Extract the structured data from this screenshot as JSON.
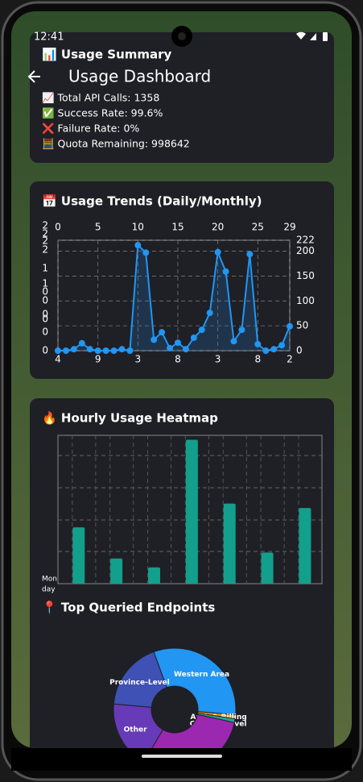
{
  "status_bar": {
    "time": "12:41"
  },
  "app_bar": {
    "title": "Usage Dashboard"
  },
  "summary": {
    "title": "📊 Usage Summary",
    "lines": [
      "📈 Total API Calls: 1358",
      "✅ Success Rate: 99.6%",
      "❌ Failure Rate: 0%",
      "🧮 Quota Remaining: 998642"
    ]
  },
  "trends": {
    "type": "line",
    "title": "📅 Usage Trends (Daily/Monthly)",
    "x": [
      0,
      1,
      2,
      3,
      4,
      5,
      6,
      7,
      8,
      9,
      10,
      11,
      12,
      13,
      14,
      15,
      16,
      17,
      18,
      19,
      20,
      21,
      22,
      23,
      24,
      25,
      26,
      27,
      28,
      29
    ],
    "values": [
      0,
      0,
      3,
      15,
      3,
      0,
      0,
      0,
      3,
      0,
      212,
      197,
      22,
      37,
      5,
      16,
      3,
      26,
      42,
      76,
      198,
      159,
      19,
      42,
      194,
      13,
      0,
      3,
      11,
      49
    ],
    "xlim": [
      0,
      29
    ],
    "xticks": [
      0,
      5,
      10,
      15,
      20,
      25,
      29
    ],
    "bottom_labels": [
      "4",
      "9",
      "3",
      "8",
      "3",
      "8",
      "2"
    ],
    "left_labels": [
      "2",
      "2",
      "2",
      "2",
      "1",
      "1",
      "0",
      "0",
      "0",
      "0",
      "0",
      "0"
    ],
    "ylim": [
      0,
      222
    ],
    "yticks": [
      0,
      50,
      100,
      150,
      200,
      222
    ],
    "color": "#2196f3"
  },
  "heatmap": {
    "type": "bar",
    "title": "🔥 Hourly Usage Heatmap",
    "values": [
      38,
      17,
      11,
      97,
      54,
      21,
      51
    ],
    "ylim": [
      0,
      100
    ],
    "x_label_lines": [
      "Mon",
      "day"
    ],
    "color": "#12a08c"
  },
  "endpoints": {
    "type": "pie",
    "title": "📍 Top Queried Endpoints",
    "slices": [
      {
        "name": "Western Area",
        "value": 32,
        "color": "#2196f3"
      },
      {
        "name": "Auth & Billing",
        "value": 1,
        "color": "#ff9800"
      },
      {
        "name": "Country-Level",
        "value": 1,
        "color": "#26a69a"
      },
      {
        "name": null,
        "value": 30,
        "color": "#9c27b0"
      },
      {
        "name": "Other",
        "value": 18,
        "color": "#673ab7"
      },
      {
        "name": "Province-Level",
        "value": 18,
        "color": "#3f51b5"
      }
    ]
  }
}
